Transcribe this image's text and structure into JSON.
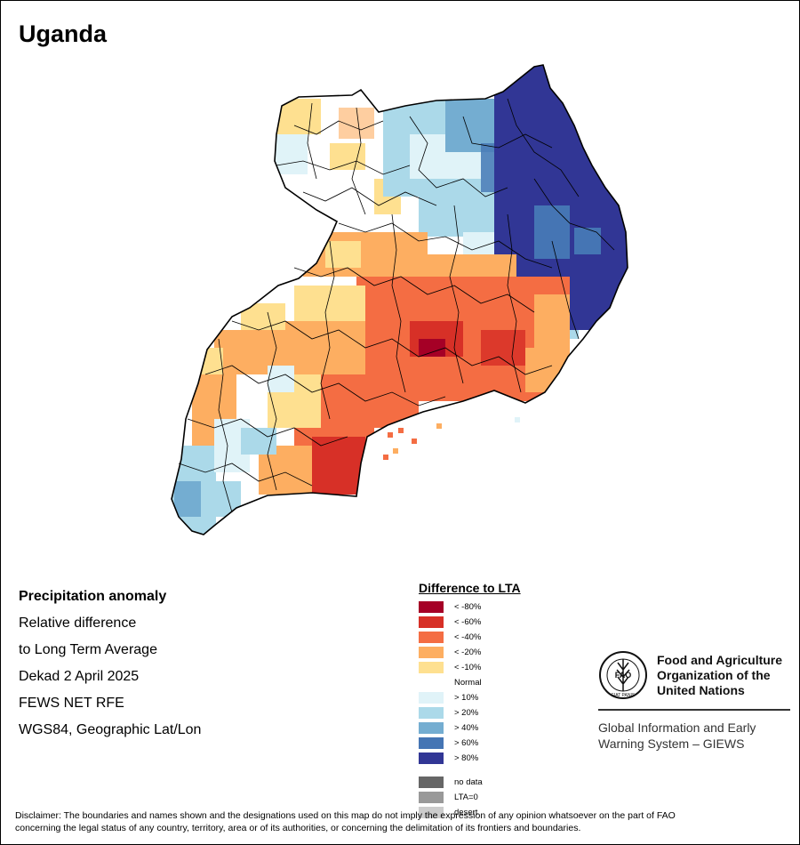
{
  "title": "Uganda",
  "info": {
    "line1": "Precipitation anomaly",
    "line2": "Relative difference",
    "line3": "to Long Term Average",
    "line4": "Dekad 2 April 2025",
    "line5": "FEWS NET RFE",
    "line6": "WGS84, Geographic Lat/Lon"
  },
  "legend": {
    "title": "Difference to LTA",
    "items": [
      {
        "label": "< -80%",
        "color": "#a50026"
      },
      {
        "label": "< -60%",
        "color": "#d73027"
      },
      {
        "label": "< -40%",
        "color": "#f46d43"
      },
      {
        "label": "< -20%",
        "color": "#fdae61"
      },
      {
        "label": "< -10%",
        "color": "#fee090"
      },
      {
        "label": "Normal",
        "color": "#ffffff"
      },
      {
        "label": "> 10%",
        "color": "#e0f3f8"
      },
      {
        "label": "> 20%",
        "color": "#abd9e9"
      },
      {
        "label": "> 40%",
        "color": "#74add1"
      },
      {
        "label": "> 60%",
        "color": "#4575b4"
      },
      {
        "label": "> 80%",
        "color": "#313695"
      }
    ],
    "extras": [
      {
        "label": "no data",
        "color": "#666666"
      },
      {
        "label": "LTA=0",
        "color": "#999999"
      },
      {
        "label": "desert",
        "color": "#cccccc"
      }
    ]
  },
  "fao": {
    "org_line1": "Food and Agriculture",
    "org_line2": "Organization of the",
    "org_line3": "United Nations",
    "logo_text": "FAO",
    "logo_motto": "FIAT PANIS",
    "system_line1": "Global Information and Early",
    "system_line2": "Warning System – GIEWS"
  },
  "disclaimer_line1": "Disclaimer: The boundaries and names shown and the designations used on this map do not imply the expression of any opinion whatsoever on the part of FAO",
  "disclaimer_line2": "concerning the legal status of any country, territory, area or of its authorities, or concerning the delimitation of its frontiers and boundaries."
}
